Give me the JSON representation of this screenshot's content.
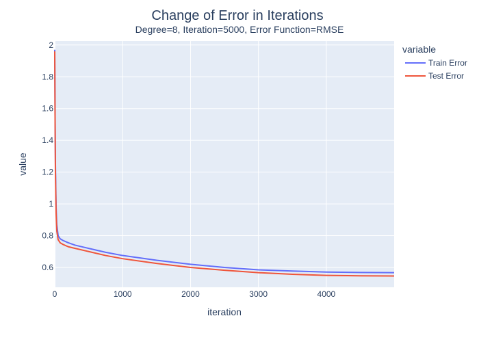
{
  "chart_data": {
    "type": "line",
    "title": "Change of Error in Iterations",
    "subtitle": "Degree=8, Iteration=5000, Error Function=RMSE",
    "xlabel": "iteration",
    "ylabel": "value",
    "xlim": [
      0,
      4999
    ],
    "ylim": [
      0.475,
      2.025
    ],
    "x_ticks": [
      0,
      1000,
      2000,
      3000,
      4000
    ],
    "x_tick_labels": [
      "0",
      "1000",
      "2000",
      "3000",
      "4000"
    ],
    "y_ticks": [
      0.6,
      0.8,
      1.0,
      1.2,
      1.4,
      1.6,
      1.8,
      2.0
    ],
    "y_tick_labels": [
      "0.6",
      "0.8",
      "1",
      "1.2",
      "1.4",
      "1.6",
      "1.8",
      "2"
    ],
    "grid": true,
    "legend": {
      "title": "variable",
      "placement": "right"
    },
    "series": [
      {
        "name": "Train Error",
        "color": "#636efa",
        "x": [
          0,
          5,
          10,
          20,
          30,
          50,
          80,
          120,
          200,
          300,
          500,
          750,
          1000,
          1500,
          2000,
          2500,
          3000,
          3500,
          4000,
          4500,
          4999
        ],
        "y": [
          1.97,
          1.55,
          1.25,
          0.98,
          0.87,
          0.8,
          0.78,
          0.77,
          0.755,
          0.74,
          0.72,
          0.695,
          0.675,
          0.645,
          0.62,
          0.6,
          0.585,
          0.577,
          0.571,
          0.568,
          0.567
        ]
      },
      {
        "name": "Test Error",
        "color": "#ef553b",
        "x": [
          0,
          5,
          10,
          20,
          30,
          50,
          80,
          120,
          200,
          300,
          500,
          750,
          1000,
          1500,
          2000,
          2500,
          3000,
          3500,
          4000,
          4500,
          4999
        ],
        "y": [
          1.96,
          1.52,
          1.2,
          0.94,
          0.83,
          0.775,
          0.755,
          0.745,
          0.73,
          0.72,
          0.7,
          0.675,
          0.655,
          0.625,
          0.6,
          0.582,
          0.567,
          0.557,
          0.55,
          0.547,
          0.546
        ]
      }
    ]
  }
}
